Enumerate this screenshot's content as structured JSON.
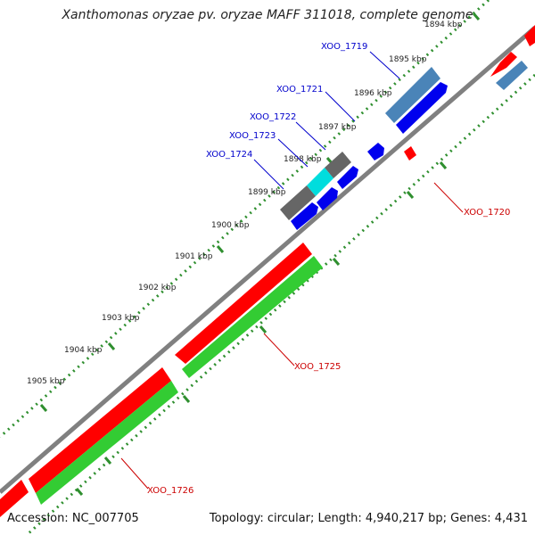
{
  "title": "Xanthomonas oryzae pv. oryzae MAFF 311018, complete genome",
  "footer": {
    "accession": "Accession: NC_007705",
    "summary": "Topology: circular; Length: 4,940,217 bp; Genes: 4,431"
  },
  "colors": {
    "backbone": "#808080",
    "forward_dots": "#2f8f2f",
    "gene_red": "#ff0000",
    "gene_green": "#33cc33",
    "gene_blue": "#0000ee",
    "gene_steel": "#4a84b8",
    "gene_gray": "#666666",
    "gene_cyan": "#00dddd",
    "label_blue": "#0000cc",
    "label_red": "#cc0000"
  },
  "kbp_ticks": [
    "1894 kbp",
    "1895 kbp",
    "1896 kbp",
    "1897 kbp",
    "1898 kbp",
    "1899 kbp",
    "1900 kbp",
    "1901 kbp",
    "1902 kbp",
    "1903 kbp",
    "1904 kbp",
    "1905 kbp"
  ],
  "genes": [
    {
      "id": "XOO_1719",
      "color": "blue"
    },
    {
      "id": "XOO_1721",
      "color": "blue"
    },
    {
      "id": "XOO_1722",
      "color": "blue"
    },
    {
      "id": "XOO_1723",
      "color": "blue"
    },
    {
      "id": "XOO_1724",
      "color": "blue"
    },
    {
      "id": "XOO_1720",
      "color": "red"
    },
    {
      "id": "XOO_1725",
      "color": "red"
    },
    {
      "id": "XOO_1726",
      "color": "red"
    }
  ]
}
